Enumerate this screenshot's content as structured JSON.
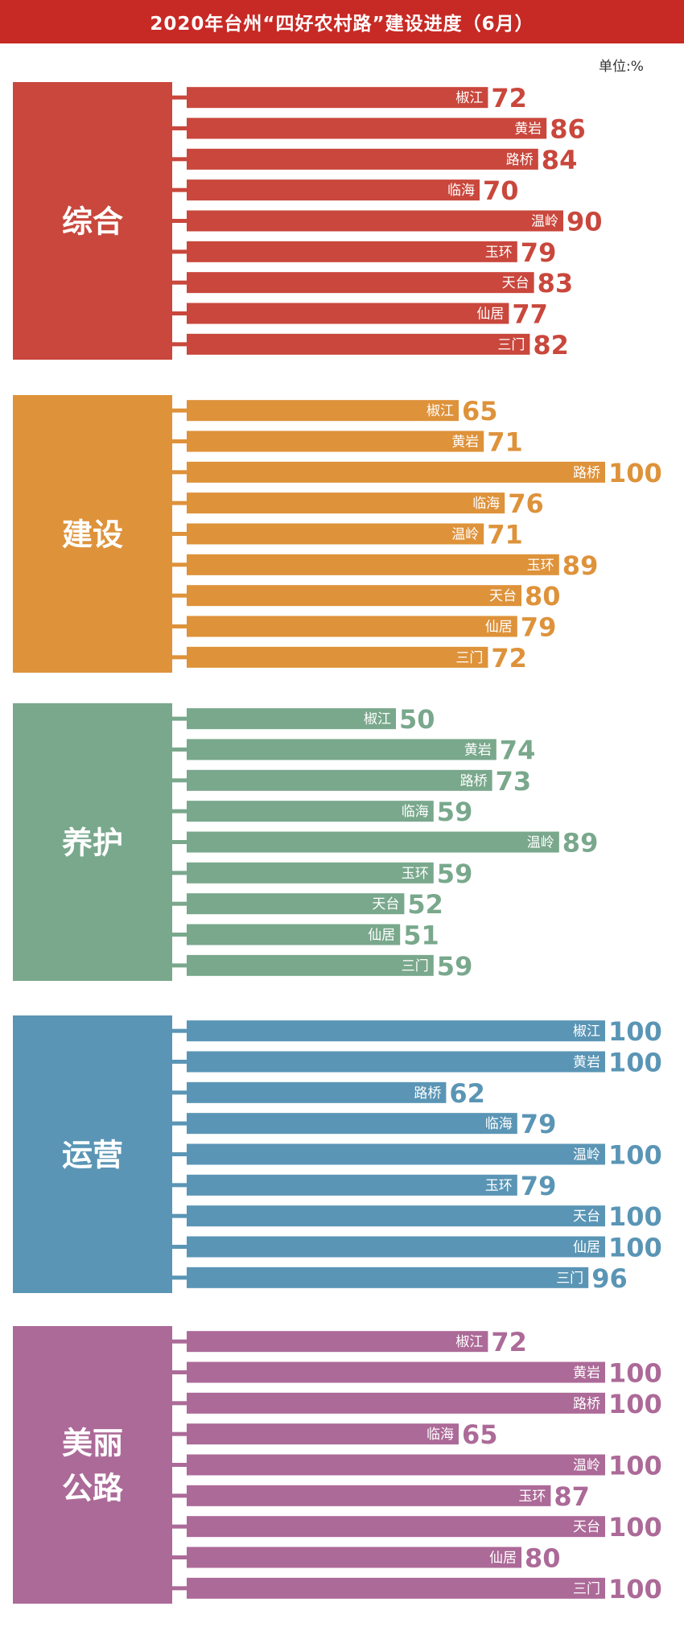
{
  "title": "2020年台州“四好农村路”建设进度（6月）",
  "unit": "单位:%",
  "chart_data": [
    {
      "type": "bar",
      "category": [
        "综合"
      ],
      "color": "#c9473c",
      "categories": [
        "椒江",
        "黄岩",
        "路桥",
        "临海",
        "温岭",
        "玉环",
        "天台",
        "仙居",
        "三门"
      ],
      "values": [
        72,
        86,
        84,
        70,
        90,
        79,
        83,
        77,
        82
      ]
    },
    {
      "type": "bar",
      "category": [
        "建设"
      ],
      "color": "#de923a",
      "categories": [
        "椒江",
        "黄岩",
        "路桥",
        "临海",
        "温岭",
        "玉环",
        "天台",
        "仙居",
        "三门"
      ],
      "values": [
        65,
        71,
        100,
        76,
        71,
        89,
        80,
        79,
        72
      ]
    },
    {
      "type": "bar",
      "category": [
        "养护"
      ],
      "color": "#79a88c",
      "categories": [
        "椒江",
        "黄岩",
        "路桥",
        "临海",
        "温岭",
        "玉环",
        "天台",
        "仙居",
        "三门"
      ],
      "values": [
        50,
        74,
        73,
        59,
        89,
        59,
        52,
        51,
        59
      ]
    },
    {
      "type": "bar",
      "category": [
        "运营"
      ],
      "color": "#5a95b5",
      "categories": [
        "椒江",
        "黄岩",
        "路桥",
        "临海",
        "温岭",
        "玉环",
        "天台",
        "仙居",
        "三门"
      ],
      "values": [
        100,
        100,
        62,
        79,
        100,
        79,
        100,
        100,
        96
      ]
    },
    {
      "type": "bar",
      "category": [
        "美丽",
        "公路"
      ],
      "color": "#ac6a98",
      "categories": [
        "椒江",
        "黄岩",
        "路桥",
        "临海",
        "温岭",
        "玉环",
        "天台",
        "仙居",
        "三门"
      ],
      "values": [
        72,
        100,
        100,
        65,
        100,
        87,
        100,
        80,
        100
      ]
    }
  ]
}
